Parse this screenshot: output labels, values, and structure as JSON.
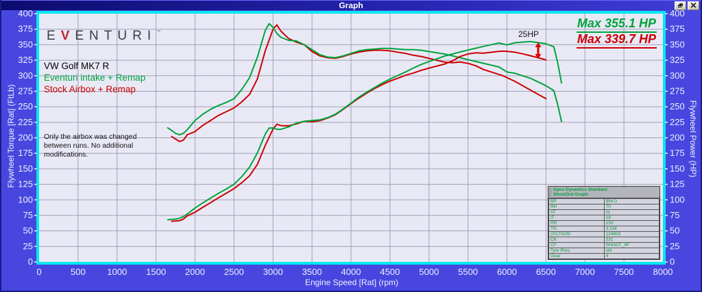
{
  "window": {
    "title": "Graph"
  },
  "icons": {
    "restore": "restore-icon",
    "close": "close-icon"
  },
  "logo": {
    "e": "E",
    "v": "V",
    "rest": "ENTURI",
    "tm": "™"
  },
  "legend": {
    "vehicle": "VW Golf MK7 R",
    "eventuri": "Eventuri intake + Remap",
    "stock": "Stock Airbox + Remap"
  },
  "note": {
    "line1": "Only the airbox was changed",
    "line2": "between runs. No additional",
    "line3": "modifications."
  },
  "annotations": {
    "max_green": "Max 355.1 HP",
    "max_red": "Max 339.7 HP",
    "gap": "25HP",
    "gap_rpm": 6400
  },
  "info_table": {
    "header_line1": "Dyno Dynamics Standard",
    "header_line2": "ShootOut Graph.",
    "rows": [
      [
        "BP",
        "994.0"
      ],
      [
        "RH",
        "70"
      ],
      [
        "AT",
        "11"
      ],
      [
        "IT",
        "18"
      ],
      [
        "RR",
        "150"
      ],
      [
        "TN",
        "3.234"
      ],
      [
        "20170109",
        "124833"
      ],
      [
        "CK",
        "331"
      ],
      [
        "CF",
        "SHOOT_4F"
      ],
      [
        "Tyre Pres.",
        "std"
      ],
      [
        "Gear",
        "4"
      ]
    ]
  },
  "colors": {
    "green": "#00a33c",
    "red": "#cc0000",
    "window_blue": "#4747df",
    "plot_bg": "#e9e9f5",
    "grid": "#a0a0b8",
    "frame": "#00e8f0",
    "tick_text": "#eef0ff"
  },
  "chart_data": {
    "type": "line",
    "title": "Graph",
    "xlabel": "Engine Speed [Rat] (rpm)",
    "ylabel_left": "Flywheel Torque [Rat] (FtLb)",
    "ylabel_right": "Flywheel Power (HP)",
    "xlim": [
      0,
      8000
    ],
    "xstep": 500,
    "ylim": [
      0,
      400
    ],
    "ystep": 25,
    "grid": true,
    "legend_position": "top-left-inside",
    "series": [
      {
        "name": "Stock Airbox + Remap — Torque (FtLb)",
        "color": "#cc0000",
        "max": null,
        "points": [
          [
            1700,
            202
          ],
          [
            1750,
            198
          ],
          [
            1800,
            194
          ],
          [
            1850,
            196
          ],
          [
            1900,
            205
          ],
          [
            2000,
            210
          ],
          [
            2100,
            220
          ],
          [
            2200,
            228
          ],
          [
            2300,
            236
          ],
          [
            2400,
            242
          ],
          [
            2500,
            248
          ],
          [
            2600,
            258
          ],
          [
            2700,
            270
          ],
          [
            2800,
            295
          ],
          [
            2900,
            340
          ],
          [
            3000,
            375
          ],
          [
            3050,
            382
          ],
          [
            3100,
            372
          ],
          [
            3200,
            360
          ],
          [
            3300,
            354
          ],
          [
            3400,
            350
          ],
          [
            3500,
            339
          ],
          [
            3600,
            332
          ],
          [
            3700,
            329
          ],
          [
            3800,
            328
          ],
          [
            3900,
            331
          ],
          [
            4000,
            335
          ],
          [
            4100,
            338
          ],
          [
            4200,
            340
          ],
          [
            4300,
            341
          ],
          [
            4400,
            341
          ],
          [
            4500,
            340
          ],
          [
            4600,
            338
          ],
          [
            4700,
            336
          ],
          [
            4800,
            333
          ],
          [
            4900,
            331
          ],
          [
            5000,
            328
          ],
          [
            5100,
            325
          ],
          [
            5200,
            322
          ],
          [
            5300,
            321
          ],
          [
            5400,
            322
          ],
          [
            5500,
            320
          ],
          [
            5600,
            316
          ],
          [
            5700,
            310
          ],
          [
            5800,
            306
          ],
          [
            5900,
            302
          ],
          [
            5950,
            300
          ],
          [
            6000,
            297
          ],
          [
            6100,
            291
          ],
          [
            6200,
            284
          ],
          [
            6300,
            277
          ],
          [
            6400,
            270
          ],
          [
            6500,
            263
          ]
        ]
      },
      {
        "name": "Eventuri intake + Remap — Torque (FtLb)",
        "color": "#00a33c",
        "max": null,
        "points": [
          [
            1650,
            216
          ],
          [
            1700,
            212
          ],
          [
            1750,
            207
          ],
          [
            1800,
            205
          ],
          [
            1850,
            207
          ],
          [
            1900,
            213
          ],
          [
            2000,
            228
          ],
          [
            2100,
            238
          ],
          [
            2200,
            246
          ],
          [
            2300,
            252
          ],
          [
            2400,
            257
          ],
          [
            2500,
            263
          ],
          [
            2600,
            278
          ],
          [
            2700,
            297
          ],
          [
            2800,
            330
          ],
          [
            2900,
            373
          ],
          [
            2950,
            384
          ],
          [
            3000,
            378
          ],
          [
            3050,
            368
          ],
          [
            3100,
            362
          ],
          [
            3200,
            357
          ],
          [
            3300,
            356
          ],
          [
            3400,
            350
          ],
          [
            3500,
            342
          ],
          [
            3600,
            334
          ],
          [
            3700,
            330
          ],
          [
            3800,
            329
          ],
          [
            3900,
            332
          ],
          [
            4000,
            336
          ],
          [
            4100,
            340
          ],
          [
            4200,
            342
          ],
          [
            4300,
            343
          ],
          [
            4400,
            344
          ],
          [
            4500,
            344
          ],
          [
            4600,
            343
          ],
          [
            4700,
            342
          ],
          [
            4800,
            342
          ],
          [
            4900,
            341
          ],
          [
            5000,
            339
          ],
          [
            5100,
            337
          ],
          [
            5200,
            335
          ],
          [
            5300,
            332
          ],
          [
            5400,
            329
          ],
          [
            5500,
            326
          ],
          [
            5600,
            323
          ],
          [
            5700,
            320
          ],
          [
            5800,
            317
          ],
          [
            5900,
            314
          ],
          [
            6000,
            306
          ],
          [
            6100,
            304
          ],
          [
            6200,
            300
          ],
          [
            6300,
            296
          ],
          [
            6400,
            290
          ],
          [
            6500,
            284
          ],
          [
            6600,
            276
          ],
          [
            6650,
            254
          ],
          [
            6700,
            226
          ]
        ]
      },
      {
        "name": "Stock Airbox + Remap — Power (HP)",
        "color": "#cc0000",
        "max": 339.7,
        "points": [
          [
            1700,
            65.4
          ],
          [
            1750,
            66.0
          ],
          [
            1800,
            66.5
          ],
          [
            1850,
            69.0
          ],
          [
            1900,
            74.2
          ],
          [
            2000,
            80.0
          ],
          [
            2100,
            88.0
          ],
          [
            2200,
            95.5
          ],
          [
            2300,
            103.4
          ],
          [
            2400,
            110.6
          ],
          [
            2500,
            118.1
          ],
          [
            2600,
            127.7
          ],
          [
            2700,
            138.8
          ],
          [
            2800,
            157.3
          ],
          [
            2900,
            187.7
          ],
          [
            3000,
            214.2
          ],
          [
            3050,
            221.8
          ],
          [
            3100,
            219.6
          ],
          [
            3200,
            219.3
          ],
          [
            3300,
            222.4
          ],
          [
            3400,
            226.6
          ],
          [
            3500,
            225.9
          ],
          [
            3600,
            227.6
          ],
          [
            3700,
            231.8
          ],
          [
            3800,
            237.3
          ],
          [
            3900,
            245.8
          ],
          [
            4000,
            255.1
          ],
          [
            4100,
            263.8
          ],
          [
            4200,
            271.9
          ],
          [
            4300,
            279.2
          ],
          [
            4400,
            285.7
          ],
          [
            4500,
            291.3
          ],
          [
            4600,
            296.0
          ],
          [
            4700,
            300.7
          ],
          [
            4800,
            304.3
          ],
          [
            4900,
            308.8
          ],
          [
            5000,
            312.3
          ],
          [
            5100,
            315.6
          ],
          [
            5200,
            318.8
          ],
          [
            5300,
            323.9
          ],
          [
            5400,
            331.0
          ],
          [
            5500,
            335.1
          ],
          [
            5600,
            336.9
          ],
          [
            5700,
            336.4
          ],
          [
            5800,
            337.9
          ],
          [
            5900,
            339.3
          ],
          [
            5950,
            339.7
          ],
          [
            6000,
            339.3
          ],
          [
            6100,
            338.0
          ],
          [
            6200,
            335.3
          ],
          [
            6300,
            332.2
          ],
          [
            6400,
            329.0
          ],
          [
            6500,
            325.5
          ]
        ]
      },
      {
        "name": "Eventuri intake + Remap — Power (HP)",
        "color": "#00a33c",
        "max": 355.1,
        "points": [
          [
            1650,
            67.9
          ],
          [
            1700,
            68.6
          ],
          [
            1750,
            69.0
          ],
          [
            1800,
            70.3
          ],
          [
            1850,
            72.9
          ],
          [
            1900,
            77.1
          ],
          [
            2000,
            86.8
          ],
          [
            2100,
            95.2
          ],
          [
            2200,
            103.0
          ],
          [
            2300,
            110.4
          ],
          [
            2400,
            117.4
          ],
          [
            2500,
            125.2
          ],
          [
            2600,
            137.6
          ],
          [
            2700,
            152.7
          ],
          [
            2800,
            175.9
          ],
          [
            2900,
            206.0
          ],
          [
            2950,
            215.7
          ],
          [
            3000,
            215.9
          ],
          [
            3050,
            213.7
          ],
          [
            3100,
            213.7
          ],
          [
            3200,
            217.5
          ],
          [
            3300,
            223.7
          ],
          [
            3400,
            226.6
          ],
          [
            3500,
            227.9
          ],
          [
            3600,
            228.9
          ],
          [
            3700,
            232.5
          ],
          [
            3800,
            238.0
          ],
          [
            3900,
            246.5
          ],
          [
            4000,
            255.9
          ],
          [
            4100,
            265.4
          ],
          [
            4200,
            273.5
          ],
          [
            4300,
            280.8
          ],
          [
            4400,
            288.2
          ],
          [
            4500,
            294.7
          ],
          [
            4600,
            300.4
          ],
          [
            4700,
            306.1
          ],
          [
            4800,
            312.5
          ],
          [
            4900,
            318.1
          ],
          [
            5000,
            322.7
          ],
          [
            5100,
            327.2
          ],
          [
            5200,
            331.7
          ],
          [
            5300,
            335.0
          ],
          [
            5400,
            338.3
          ],
          [
            5500,
            341.4
          ],
          [
            5600,
            344.4
          ],
          [
            5700,
            347.3
          ],
          [
            5800,
            350.1
          ],
          [
            5900,
            352.7
          ],
          [
            6000,
            349.6
          ],
          [
            6100,
            353.1
          ],
          [
            6200,
            354.2
          ],
          [
            6300,
            355.1
          ],
          [
            6400,
            353.4
          ],
          [
            6500,
            351.5
          ],
          [
            6600,
            346.8
          ],
          [
            6650,
            321.5
          ],
          [
            6700,
            288.3
          ]
        ]
      }
    ]
  }
}
